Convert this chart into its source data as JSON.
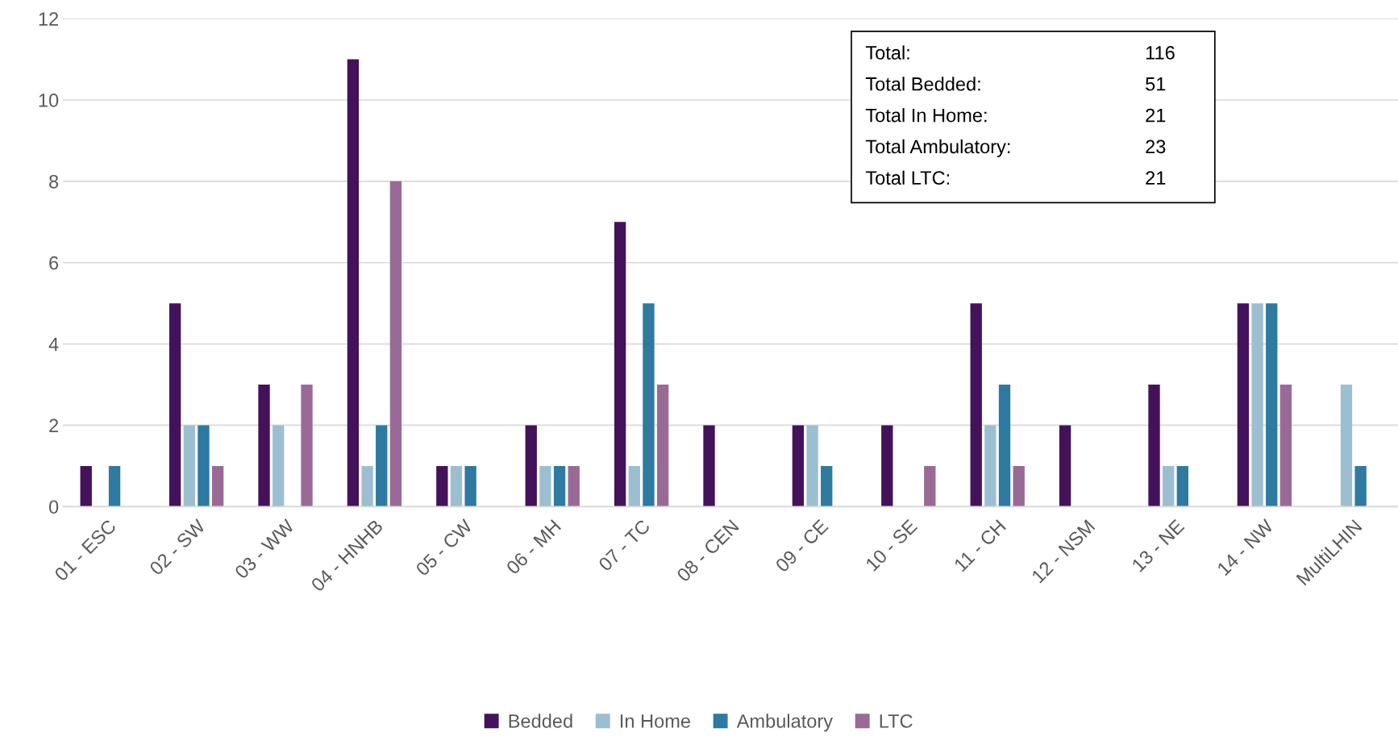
{
  "chart_data": {
    "type": "bar",
    "categories": [
      "01 - ESC",
      "02 - SW",
      "03 - WW",
      "04 - HNHB",
      "05 - CW",
      "06 - MH",
      "07 - TC",
      "08 - CEN",
      "09 - CE",
      "10 - SE",
      "11 - CH",
      "12 - NSM",
      "13 - NE",
      "14 - NW",
      "MultiLHIN"
    ],
    "series": [
      {
        "name": "Bedded",
        "color": "#44125a",
        "values": [
          1,
          5,
          3,
          11,
          1,
          2,
          7,
          2,
          2,
          2,
          5,
          2,
          3,
          5,
          0
        ]
      },
      {
        "name": "In Home",
        "color": "#9bbfd1",
        "values": [
          0,
          2,
          2,
          1,
          1,
          1,
          1,
          0,
          2,
          0,
          2,
          0,
          1,
          5,
          3
        ]
      },
      {
        "name": "Ambulatory",
        "color": "#2e7aa0",
        "values": [
          1,
          2,
          0,
          2,
          1,
          1,
          5,
          0,
          1,
          0,
          3,
          0,
          1,
          5,
          1
        ]
      },
      {
        "name": "LTC",
        "color": "#9a6a96",
        "values": [
          0,
          1,
          3,
          8,
          0,
          1,
          3,
          0,
          0,
          1,
          1,
          0,
          0,
          3,
          0
        ]
      }
    ],
    "ylim": [
      0,
      12
    ],
    "yticks": [
      0,
      2,
      4,
      6,
      8,
      10,
      12
    ],
    "grid": "y",
    "legend": "bottom",
    "annotations": [
      "Total:",
      "116",
      "Total Bedded:",
      "51",
      "Total In Home:",
      "21",
      "Total Ambulatory:",
      "23",
      "Total LTC:",
      "21"
    ]
  }
}
